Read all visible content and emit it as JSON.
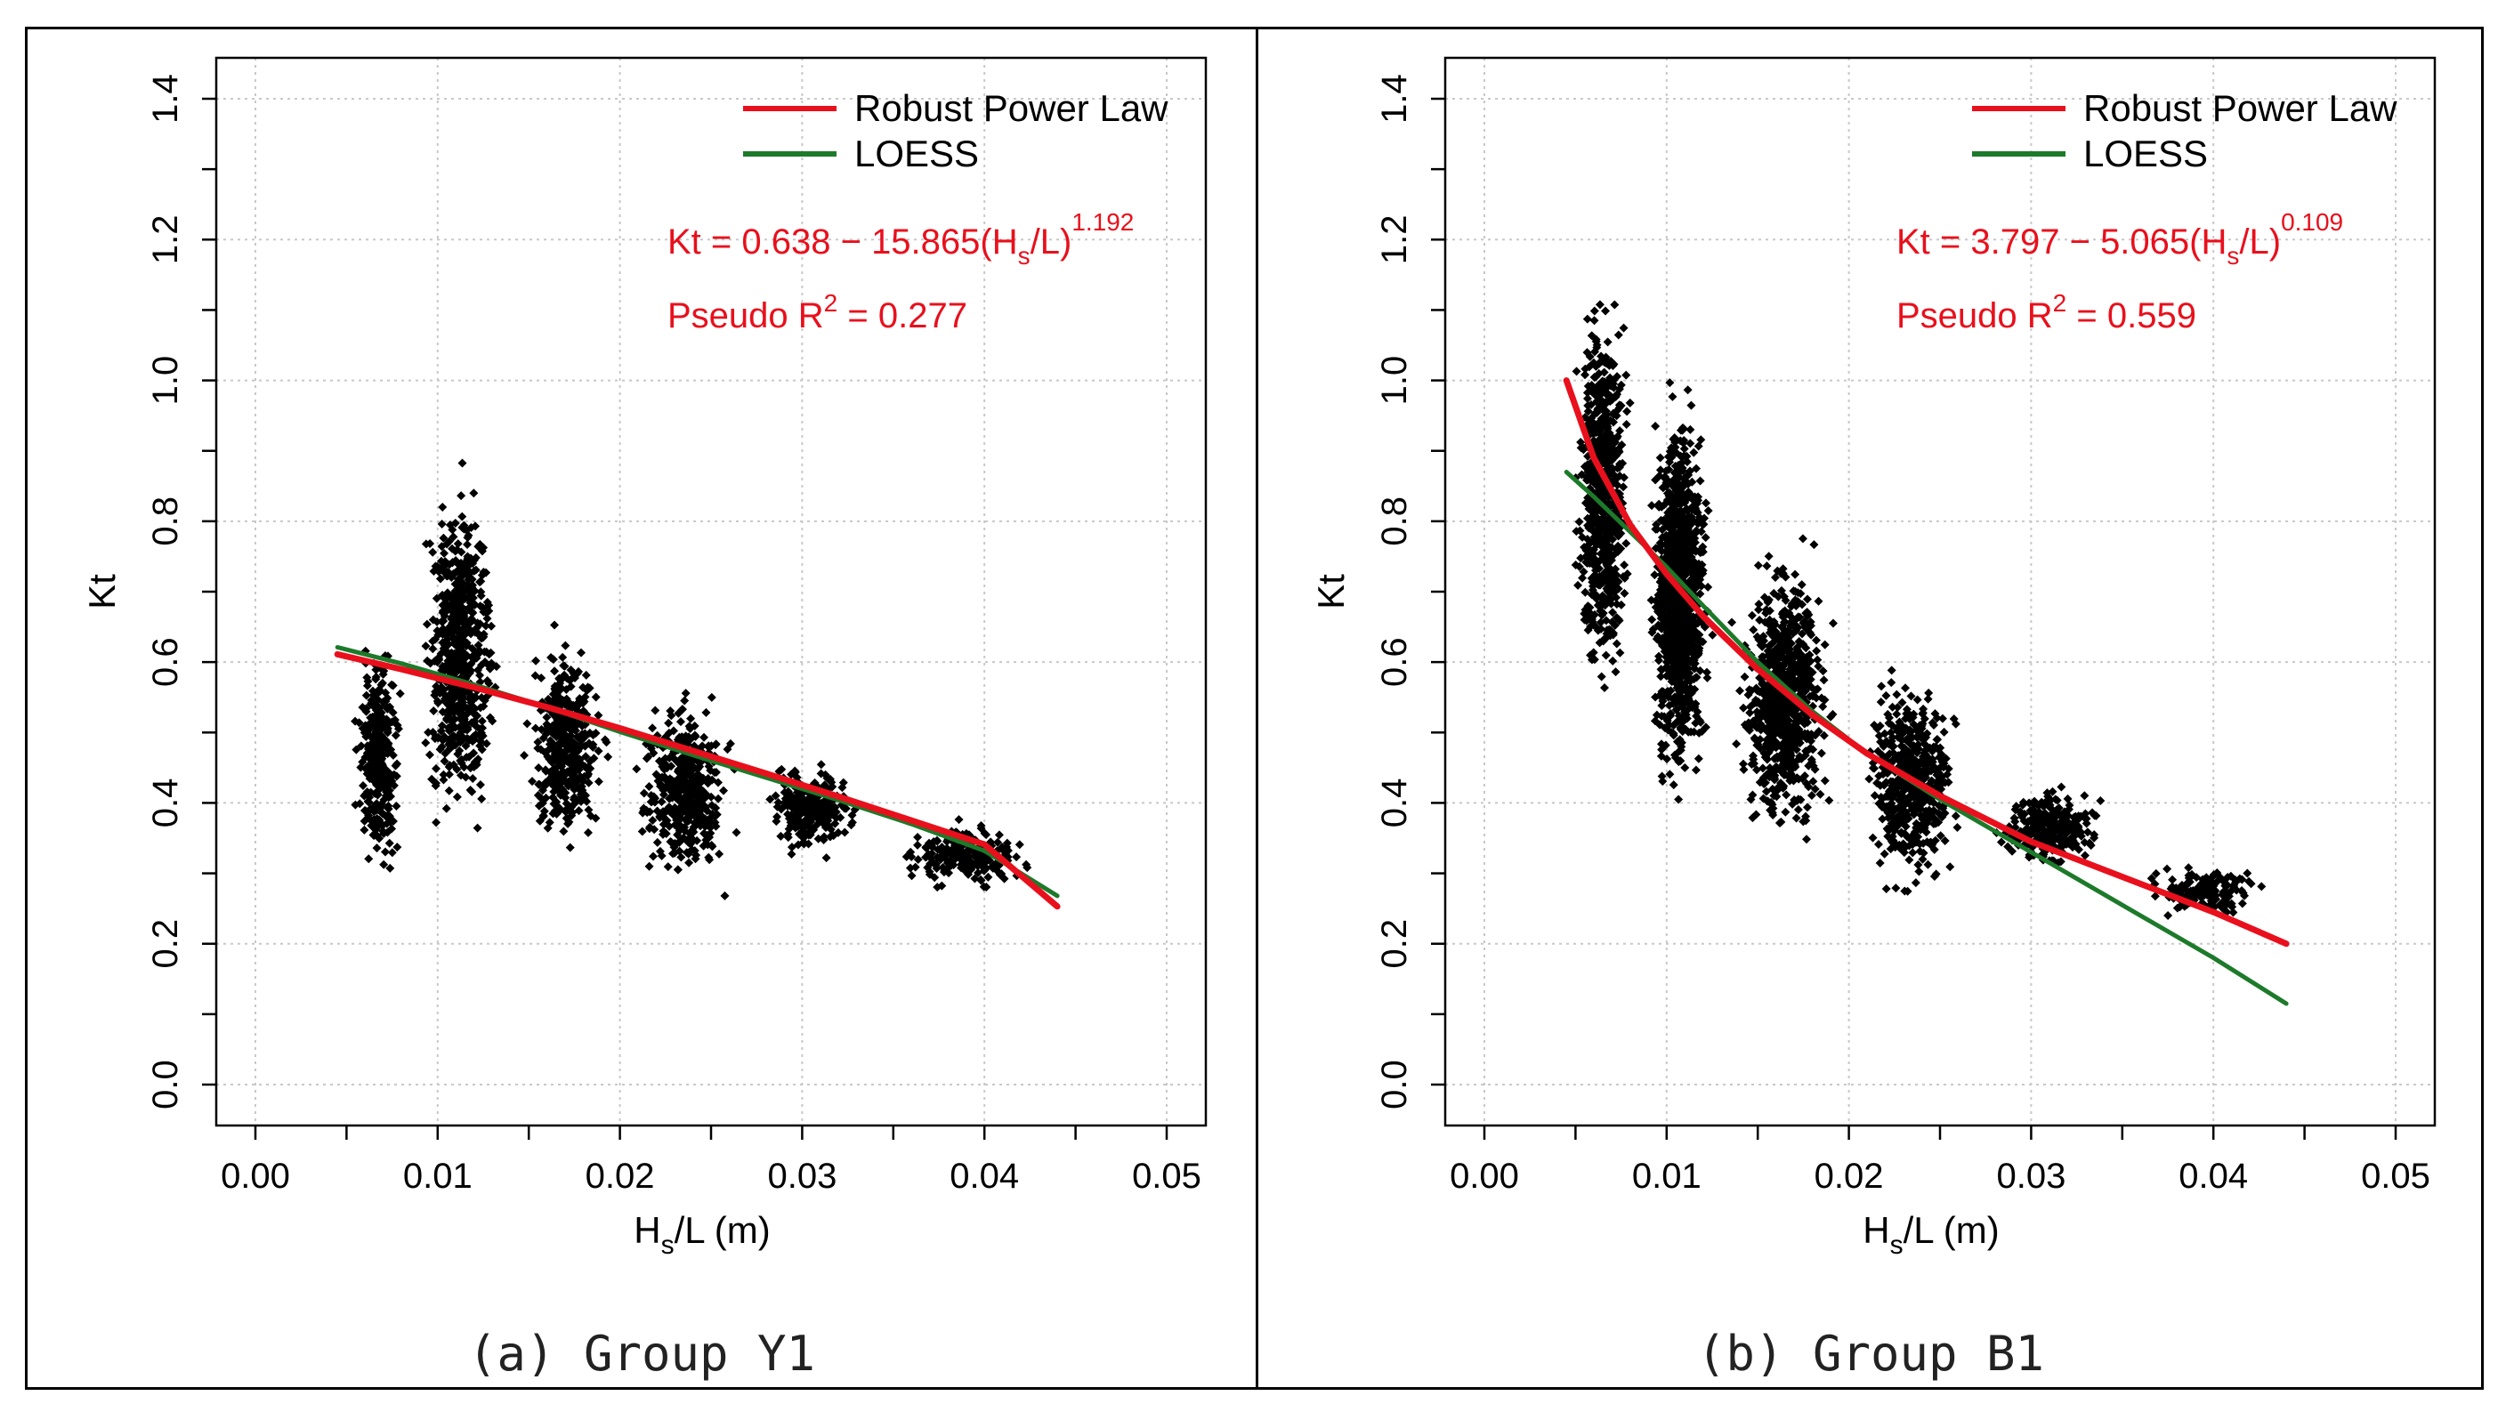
{
  "chart_data": [
    {
      "type": "scatter",
      "panel_label": "(a) Group Y1",
      "xlabel_main": "H",
      "xlabel_sub": "s",
      "xlabel_tail": "/L (m)",
      "ylabel": "Kt",
      "xlim": [
        0.0,
        0.05
      ],
      "ylim": [
        0.0,
        1.4
      ],
      "x_ticks": [
        "0.00",
        "0.01",
        "0.02",
        "0.03",
        "0.04",
        "0.05"
      ],
      "y_ticks": [
        "0.0",
        "0.2",
        "0.4",
        "0.6",
        "0.8",
        "1.0",
        "1.2",
        "1.4"
      ],
      "grid": true,
      "legend_position": "top-right",
      "annotations": {
        "equation_prefix": "Kt = 0.638 − 15.865(H",
        "equation_sub": "s",
        "equation_suffix": "/L)",
        "equation_exp": "1.192",
        "r2_prefix": "Pseudo R",
        "r2_exp": "2",
        "r2_suffix": " = 0.277"
      },
      "series": [
        {
          "name": "Robust Power Law",
          "color": "#e8101c",
          "x": [
            0.0045,
            0.008,
            0.012,
            0.016,
            0.02,
            0.024,
            0.028,
            0.032,
            0.036,
            0.04,
            0.044
          ],
          "y": [
            0.611,
            0.59,
            0.564,
            0.536,
            0.506,
            0.474,
            0.442,
            0.409,
            0.375,
            0.341,
            0.253
          ]
        },
        {
          "name": "LOESS",
          "color": "#1d7a2a",
          "x": [
            0.0045,
            0.008,
            0.012,
            0.016,
            0.02,
            0.024,
            0.028,
            0.032,
            0.036,
            0.04,
            0.044
          ],
          "y": [
            0.621,
            0.598,
            0.568,
            0.536,
            0.501,
            0.468,
            0.436,
            0.404,
            0.37,
            0.332,
            0.268
          ]
        },
        {
          "name": "",
          "color": "#000000",
          "marker": "diamond",
          "clusters": [
            {
              "x": [
                0.005,
                0.0085
              ],
              "y": [
                0.22,
                0.7
              ],
              "n": 320
            },
            {
              "x": [
                0.0085,
                0.014
              ],
              "y": [
                0.24,
                0.98
              ],
              "n": 650
            },
            {
              "x": [
                0.014,
                0.02
              ],
              "y": [
                0.25,
                0.72
              ],
              "n": 420
            },
            {
              "x": [
                0.02,
                0.027
              ],
              "y": [
                0.22,
                0.62
              ],
              "n": 420
            },
            {
              "x": [
                0.027,
                0.034
              ],
              "y": [
                0.29,
                0.5
              ],
              "n": 260
            },
            {
              "x": [
                0.034,
                0.044
              ],
              "y": [
                0.25,
                0.4
              ],
              "n": 200
            }
          ]
        }
      ]
    },
    {
      "type": "scatter",
      "panel_label": "(b) Group B1",
      "xlabel_main": "H",
      "xlabel_sub": "s",
      "xlabel_tail": "/L (m)",
      "ylabel": "Kt",
      "xlim": [
        0.0,
        0.05
      ],
      "ylim": [
        0.0,
        1.4
      ],
      "x_ticks": [
        "0.00",
        "0.01",
        "0.02",
        "0.03",
        "0.04",
        "0.05"
      ],
      "y_ticks": [
        "0.0",
        "0.2",
        "0.4",
        "0.6",
        "0.8",
        "1.0",
        "1.2",
        "1.4"
      ],
      "grid": true,
      "legend_position": "top-right",
      "annotations": {
        "equation_prefix": "Kt = 3.797 − 5.065(H",
        "equation_sub": "s",
        "equation_suffix": "/L)",
        "equation_exp": "0.109",
        "r2_prefix": "Pseudo R",
        "r2_exp": "2",
        "r2_suffix": " = 0.559"
      },
      "series": [
        {
          "name": "Robust Power Law",
          "color": "#e8101c",
          "x": [
            0.0045,
            0.006,
            0.008,
            0.01,
            0.012,
            0.015,
            0.018,
            0.021,
            0.025,
            0.03,
            0.035,
            0.04,
            0.044
          ],
          "y": [
            1.0,
            0.89,
            0.795,
            0.725,
            0.665,
            0.59,
            0.525,
            0.47,
            0.41,
            0.345,
            0.295,
            0.245,
            0.2
          ]
        },
        {
          "name": "LOESS",
          "color": "#1d7a2a",
          "x": [
            0.0045,
            0.006,
            0.008,
            0.01,
            0.012,
            0.015,
            0.018,
            0.021,
            0.025,
            0.03,
            0.035,
            0.04,
            0.044
          ],
          "y": [
            0.87,
            0.835,
            0.785,
            0.735,
            0.68,
            0.6,
            0.53,
            0.47,
            0.405,
            0.33,
            0.255,
            0.18,
            0.115
          ]
        },
        {
          "name": "",
          "color": "#000000",
          "marker": "diamond",
          "clusters": [
            {
              "x": [
                0.0045,
                0.0085
              ],
              "y": [
                0.42,
                1.26
              ],
              "n": 700
            },
            {
              "x": [
                0.0085,
                0.013
              ],
              "y": [
                0.27,
                1.12
              ],
              "n": 1100
            },
            {
              "x": [
                0.013,
                0.02
              ],
              "y": [
                0.25,
                0.85
              ],
              "n": 800
            },
            {
              "x": [
                0.02,
                0.027
              ],
              "y": [
                0.2,
                0.66
              ],
              "n": 500
            },
            {
              "x": [
                0.027,
                0.035
              ],
              "y": [
                0.28,
                0.45
              ],
              "n": 280
            },
            {
              "x": [
                0.035,
                0.044
              ],
              "y": [
                0.22,
                0.33
              ],
              "n": 150
            }
          ]
        }
      ]
    }
  ]
}
